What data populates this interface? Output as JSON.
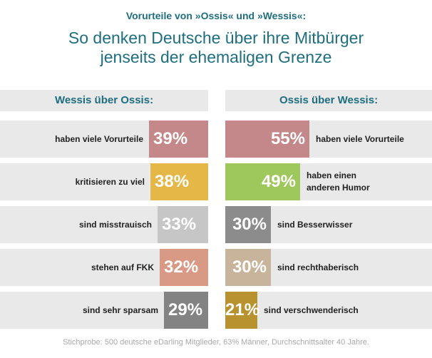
{
  "header": {
    "subtitle": "Vorurteile von »Ossis« und »Wessis«:",
    "title_line1": "So denken Deutsche über ihre Mitbürger",
    "title_line2": "jenseits der ehemaligen Grenze"
  },
  "columns": {
    "left_title": "Wessis über Ossis:",
    "right_title": "Ossis über Wessis:"
  },
  "chart_data": {
    "type": "bar",
    "title": "So denken Deutsche über ihre Mitbürger jenseits der ehemaligen Grenze",
    "unit": "%",
    "xlim": [
      0,
      100
    ],
    "series": [
      {
        "name": "Wessis über Ossis:",
        "direction": "left",
        "items": [
          {
            "label": [
              "haben viele Vorurteile"
            ],
            "value": 39,
            "display": "39%",
            "color": "#c4888a"
          },
          {
            "label": [
              "kritisieren zu viel"
            ],
            "value": 38,
            "display": "38%",
            "color": "#e5b747"
          },
          {
            "label": [
              "sind misstrauisch"
            ],
            "value": 33,
            "display": "33%",
            "color": "#c6c6c6"
          },
          {
            "label": [
              "stehen auf FKK"
            ],
            "value": 32,
            "display": "32%",
            "color": "#d99a85"
          },
          {
            "label": [
              "sind sehr sparsam"
            ],
            "value": 29,
            "display": "29%",
            "color": "#838383"
          }
        ]
      },
      {
        "name": "Ossis über Wessis:",
        "direction": "right",
        "items": [
          {
            "label": [
              "haben viele Vorurteile"
            ],
            "value": 55,
            "display": "55%",
            "color": "#c4888a"
          },
          {
            "label": [
              "haben einen",
              "anderen Humor"
            ],
            "value": 49,
            "display": "49%",
            "color": "#9fc85c"
          },
          {
            "label": [
              "sind Besserwisser"
            ],
            "value": 30,
            "display": "30%",
            "color": "#8c8c8c"
          },
          {
            "label": [
              "sind rechthaberisch"
            ],
            "value": 30,
            "display": "30%",
            "color": "#c8b49b"
          },
          {
            "label": [
              "sind verschwenderisch"
            ],
            "value": 21,
            "display": "21%",
            "color": "#b8922e"
          }
        ]
      }
    ]
  },
  "footnote": "Stichprobe: 500 deutsche eDarling Mitglieder, 63% Männer, Durchschnittsalter 40 Jahre."
}
